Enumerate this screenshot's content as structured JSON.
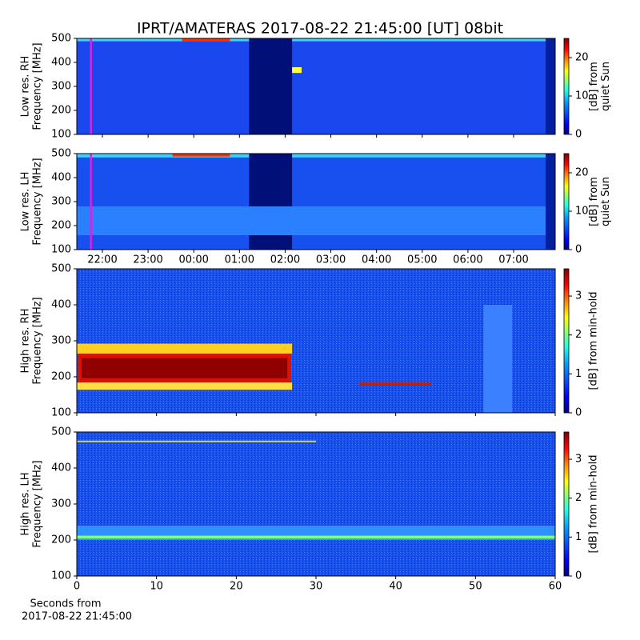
{
  "title": "IPRT/AMATERAS 2017-08-22 21:45:00 [UT]   08bit",
  "chart_data": [
    {
      "type": "heatmap",
      "ylabel": [
        "Low res. RH",
        "Frequency [MHz]"
      ],
      "ylim": [
        100,
        500
      ],
      "yticks": [
        100,
        200,
        300,
        400,
        500
      ],
      "xlim": [
        21.44,
        31.91
      ],
      "marker": 21.75,
      "marker_color": "#e020e0",
      "clim": [
        0,
        25
      ],
      "cticks": [
        0,
        10,
        20
      ],
      "clabel": [
        "[dB] from",
        "quiet Sun"
      ]
    },
    {
      "type": "heatmap",
      "ylabel": [
        "Low res. LH",
        "Frequency [MHz]"
      ],
      "ylim": [
        100,
        500
      ],
      "yticks": [
        100,
        200,
        300,
        400,
        500
      ],
      "xlim": [
        21.44,
        31.91
      ],
      "xticks": [
        {
          "value": 22,
          "label": "22:00"
        },
        {
          "value": 23,
          "label": "23:00"
        },
        {
          "value": 24,
          "label": "00:00"
        },
        {
          "value": 25,
          "label": "01:00"
        },
        {
          "value": 26,
          "label": "02:00"
        },
        {
          "value": 27,
          "label": "03:00"
        },
        {
          "value": 28,
          "label": "04:00"
        },
        {
          "value": 29,
          "label": "05:00"
        },
        {
          "value": 30,
          "label": "06:00"
        },
        {
          "value": 31,
          "label": "07:00"
        }
      ],
      "marker": 21.75,
      "marker_color": "#e020e0",
      "clim": [
        0,
        25
      ],
      "cticks": [
        0,
        10,
        20
      ],
      "clabel": [
        "[dB] from",
        "quiet Sun"
      ]
    },
    {
      "type": "heatmap",
      "ylabel": [
        "High res. RH",
        "Frequency [MHz]"
      ],
      "ylim": [
        100,
        500
      ],
      "yticks": [
        100,
        200,
        300,
        400,
        500
      ],
      "xlim": [
        0,
        60
      ],
      "clim": [
        0,
        3.7
      ],
      "cticks": [
        0,
        1,
        2,
        3
      ],
      "clabel": [
        "[dB] from min-hold"
      ]
    },
    {
      "type": "heatmap",
      "ylabel": [
        "High res. LH",
        "Frequency [MHz]"
      ],
      "ylim": [
        100,
        500
      ],
      "yticks": [
        100,
        200,
        300,
        400,
        500
      ],
      "xlim": [
        0,
        60
      ],
      "xticks": [
        0,
        10,
        20,
        30,
        40,
        50,
        60
      ],
      "xlabel": [
        "Seconds from",
        "2017-08-22 21:45:00"
      ],
      "clim": [
        0,
        3.7
      ],
      "cticks": [
        0,
        1,
        2,
        3
      ],
      "clabel": [
        "[dB] from min-hold"
      ]
    }
  ]
}
